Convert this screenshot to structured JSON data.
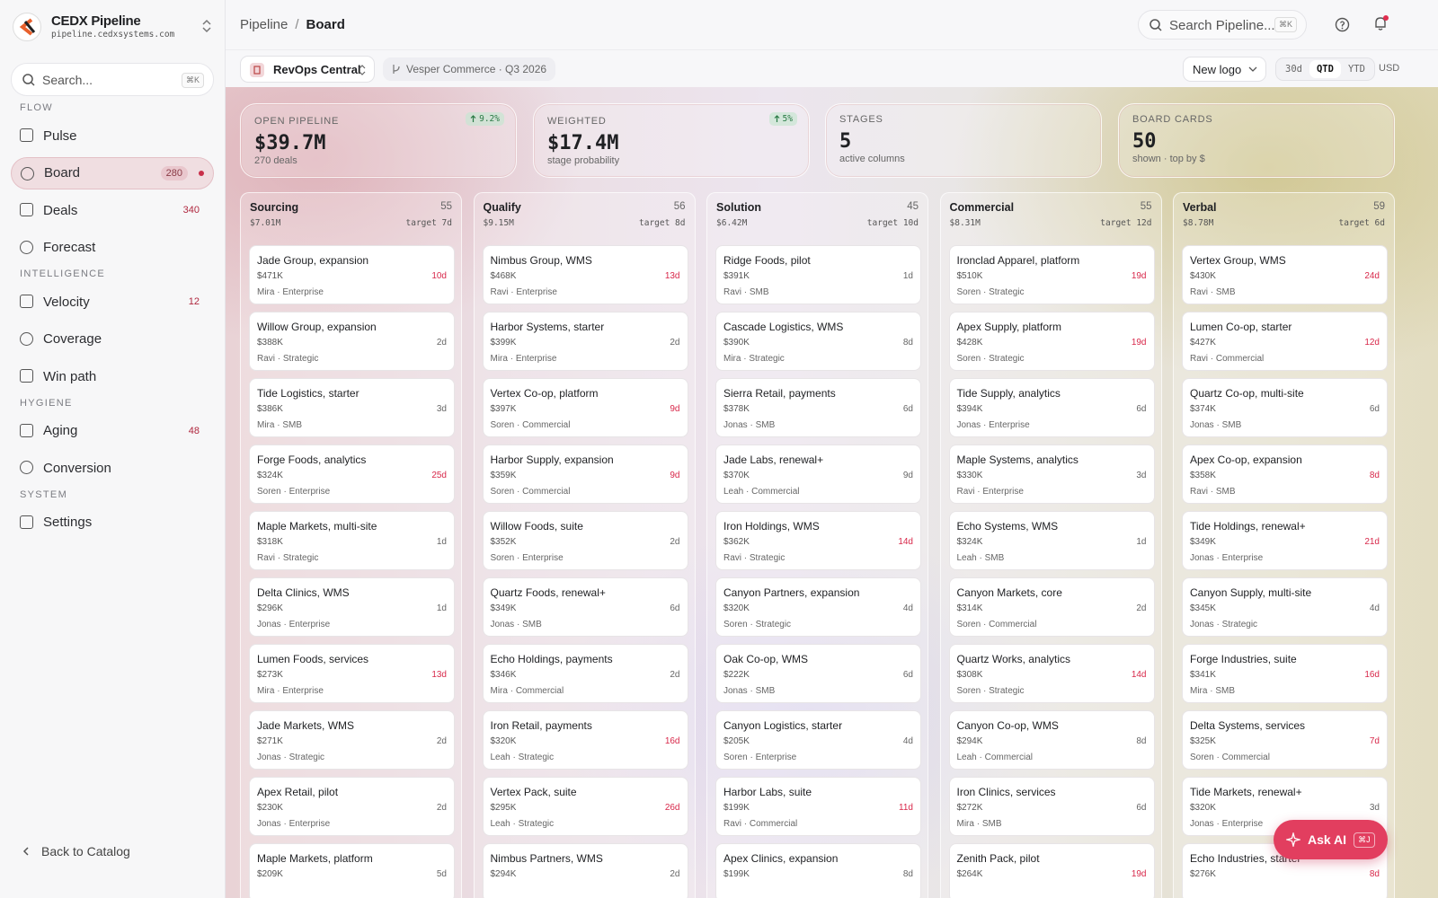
{
  "app": {
    "name": "CEDX Pipeline",
    "domain": "pipeline.cedxsystems.com"
  },
  "sidebar_search": {
    "placeholder": "Search...",
    "shortcut": "⌘K"
  },
  "nav": [
    {
      "title": "FLOW",
      "items": [
        {
          "label": "Pulse"
        },
        {
          "label": "Board",
          "badge": "280",
          "active": true
        },
        {
          "label": "Deals",
          "badge": "340"
        },
        {
          "label": "Forecast"
        }
      ]
    },
    {
      "title": "INTELLIGENCE",
      "items": [
        {
          "label": "Velocity",
          "badge": "12"
        },
        {
          "label": "Coverage"
        },
        {
          "label": "Win path"
        }
      ]
    },
    {
      "title": "HYGIENE",
      "items": [
        {
          "label": "Aging",
          "badge": "48"
        },
        {
          "label": "Conversion"
        }
      ]
    },
    {
      "title": "SYSTEM",
      "items": [
        {
          "label": "Settings"
        }
      ]
    }
  ],
  "back": "Back to Catalog",
  "breadcrumb": {
    "parent": "Pipeline",
    "separator": "/",
    "current": "Board"
  },
  "top_search": {
    "placeholder": "Search Pipeline...",
    "shortcut": "⌘K"
  },
  "toolbar": {
    "workspace": "RevOps Central",
    "context": "Vesper Commerce · Q3 2026",
    "segment": "New logo",
    "ranges": [
      "30d",
      "QTD",
      "YTD"
    ],
    "active_range": 1,
    "currency": "USD"
  },
  "kpis": [
    {
      "label": "OPEN PIPELINE",
      "value": "$39.7M",
      "sub": "270 deals",
      "delta": "9.2%"
    },
    {
      "label": "WEIGHTED",
      "value": "$17.4M",
      "sub": "stage probability",
      "delta": "5%"
    },
    {
      "label": "STAGES",
      "value": "5",
      "sub": "active columns"
    },
    {
      "label": "BOARD CARDS",
      "value": "50",
      "sub": "shown · top by $"
    }
  ],
  "columns": [
    {
      "name": "Sourcing",
      "count": "55",
      "total": "$7.01M",
      "target": "target 7d",
      "cards": [
        {
          "title": "Jade Group, expansion",
          "amount": "$471K",
          "age": "10d",
          "meta": "Mira · Enterprise"
        },
        {
          "title": "Willow Group, expansion",
          "amount": "$388K",
          "age": "2d",
          "meta": "Ravi · Strategic"
        },
        {
          "title": "Tide Logistics, starter",
          "amount": "$386K",
          "age": "3d",
          "meta": "Mira · SMB"
        },
        {
          "title": "Forge Foods, analytics",
          "amount": "$324K",
          "age": "25d",
          "meta": "Soren · Enterprise"
        },
        {
          "title": "Maple Markets, multi-site",
          "amount": "$318K",
          "age": "1d",
          "meta": "Ravi · Strategic"
        },
        {
          "title": "Delta Clinics, WMS",
          "amount": "$296K",
          "age": "1d",
          "meta": "Jonas · Enterprise"
        },
        {
          "title": "Lumen Foods, services",
          "amount": "$273K",
          "age": "13d",
          "meta": "Mira · Enterprise"
        },
        {
          "title": "Jade Markets, WMS",
          "amount": "$271K",
          "age": "2d",
          "meta": "Jonas · Strategic"
        },
        {
          "title": "Apex Retail, pilot",
          "amount": "$230K",
          "age": "2d",
          "meta": "Jonas · Enterprise"
        },
        {
          "title": "Maple Markets, platform",
          "amount": "$209K",
          "age": "5d"
        }
      ]
    },
    {
      "name": "Qualify",
      "count": "56",
      "total": "$9.15M",
      "target": "target 8d",
      "cards": [
        {
          "title": "Nimbus Group, WMS",
          "amount": "$468K",
          "age": "13d",
          "meta": "Ravi · Enterprise"
        },
        {
          "title": "Harbor Systems, starter",
          "amount": "$399K",
          "age": "2d",
          "meta": "Mira · Enterprise"
        },
        {
          "title": "Vertex Co-op, platform",
          "amount": "$397K",
          "age": "9d",
          "meta": "Soren · Commercial"
        },
        {
          "title": "Harbor Supply, expansion",
          "amount": "$359K",
          "age": "9d",
          "meta": "Soren · Commercial"
        },
        {
          "title": "Willow Foods, suite",
          "amount": "$352K",
          "age": "2d",
          "meta": "Soren · Enterprise"
        },
        {
          "title": "Quartz Foods, renewal+",
          "amount": "$349K",
          "age": "6d",
          "meta": "Jonas · SMB"
        },
        {
          "title": "Echo Holdings, payments",
          "amount": "$346K",
          "age": "2d",
          "meta": "Mira · Commercial"
        },
        {
          "title": "Iron Retail, payments",
          "amount": "$320K",
          "age": "16d",
          "meta": "Leah · Strategic"
        },
        {
          "title": "Vertex Pack, suite",
          "amount": "$295K",
          "age": "26d",
          "meta": "Leah · Strategic"
        },
        {
          "title": "Nimbus Partners, WMS",
          "amount": "$294K",
          "age": "2d"
        }
      ]
    },
    {
      "name": "Solution",
      "count": "45",
      "total": "$6.42M",
      "target": "target 10d",
      "cards": [
        {
          "title": "Ridge Foods, pilot",
          "amount": "$391K",
          "age": "1d",
          "meta": "Ravi · SMB"
        },
        {
          "title": "Cascade Logistics, WMS",
          "amount": "$390K",
          "age": "8d",
          "meta": "Mira · Strategic"
        },
        {
          "title": "Sierra Retail, payments",
          "amount": "$378K",
          "age": "6d",
          "meta": "Jonas · SMB"
        },
        {
          "title": "Jade Labs, renewal+",
          "amount": "$370K",
          "age": "9d",
          "meta": "Leah · Commercial"
        },
        {
          "title": "Iron Holdings, WMS",
          "amount": "$362K",
          "age": "14d",
          "meta": "Ravi · Strategic"
        },
        {
          "title": "Canyon Partners, expansion",
          "amount": "$320K",
          "age": "4d",
          "meta": "Soren · Strategic"
        },
        {
          "title": "Oak Co-op, WMS",
          "amount": "$222K",
          "age": "6d",
          "meta": "Jonas · SMB"
        },
        {
          "title": "Canyon Logistics, starter",
          "amount": "$205K",
          "age": "4d",
          "meta": "Soren · Enterprise"
        },
        {
          "title": "Harbor Labs, suite",
          "amount": "$199K",
          "age": "11d",
          "meta": "Ravi · Commercial"
        },
        {
          "title": "Apex Clinics, expansion",
          "amount": "$199K",
          "age": "8d"
        }
      ]
    },
    {
      "name": "Commercial",
      "count": "55",
      "total": "$8.31M",
      "target": "target 12d",
      "cards": [
        {
          "title": "Ironclad Apparel, platform",
          "amount": "$510K",
          "age": "19d",
          "meta": "Soren · Strategic"
        },
        {
          "title": "Apex Supply, platform",
          "amount": "$428K",
          "age": "19d",
          "meta": "Soren · Strategic"
        },
        {
          "title": "Tide Supply, analytics",
          "amount": "$394K",
          "age": "6d",
          "meta": "Jonas · Enterprise"
        },
        {
          "title": "Maple Systems, analytics",
          "amount": "$330K",
          "age": "3d",
          "meta": "Ravi · Enterprise"
        },
        {
          "title": "Echo Systems, WMS",
          "amount": "$324K",
          "age": "1d",
          "meta": "Leah · SMB"
        },
        {
          "title": "Canyon Markets, core",
          "amount": "$314K",
          "age": "2d",
          "meta": "Soren · Commercial"
        },
        {
          "title": "Quartz Works, analytics",
          "amount": "$308K",
          "age": "14d",
          "meta": "Soren · Strategic"
        },
        {
          "title": "Canyon Co-op, WMS",
          "amount": "$294K",
          "age": "8d",
          "meta": "Leah · Commercial"
        },
        {
          "title": "Iron Clinics, services",
          "amount": "$272K",
          "age": "6d",
          "meta": "Mira · SMB"
        },
        {
          "title": "Zenith Pack, pilot",
          "amount": "$264K",
          "age": "19d"
        }
      ]
    },
    {
      "name": "Verbal",
      "count": "59",
      "total": "$8.78M",
      "target": "target 6d",
      "cards": [
        {
          "title": "Vertex Group, WMS",
          "amount": "$430K",
          "age": "24d",
          "meta": "Ravi · SMB"
        },
        {
          "title": "Lumen Co-op, starter",
          "amount": "$427K",
          "age": "12d",
          "meta": "Ravi · Commercial"
        },
        {
          "title": "Quartz Co-op, multi-site",
          "amount": "$374K",
          "age": "6d",
          "meta": "Jonas · SMB"
        },
        {
          "title": "Apex Co-op, expansion",
          "amount": "$358K",
          "age": "8d",
          "meta": "Ravi · SMB"
        },
        {
          "title": "Tide Holdings, renewal+",
          "amount": "$349K",
          "age": "21d",
          "meta": "Jonas · Enterprise"
        },
        {
          "title": "Canyon Supply, multi-site",
          "amount": "$345K",
          "age": "4d",
          "meta": "Jonas · Strategic"
        },
        {
          "title": "Forge Industries, suite",
          "amount": "$341K",
          "age": "16d",
          "meta": "Mira · SMB"
        },
        {
          "title": "Delta Systems, services",
          "amount": "$325K",
          "age": "7d",
          "meta": "Soren · Commercial"
        },
        {
          "title": "Tide Markets, renewal+",
          "amount": "$320K",
          "age": "3d",
          "meta": "Jonas · Enterprise"
        },
        {
          "title": "Echo Industries, starter",
          "amount": "$276K",
          "age": "8d"
        }
      ]
    }
  ],
  "ask_ai": {
    "label": "Ask AI",
    "shortcut": "⌘J"
  }
}
